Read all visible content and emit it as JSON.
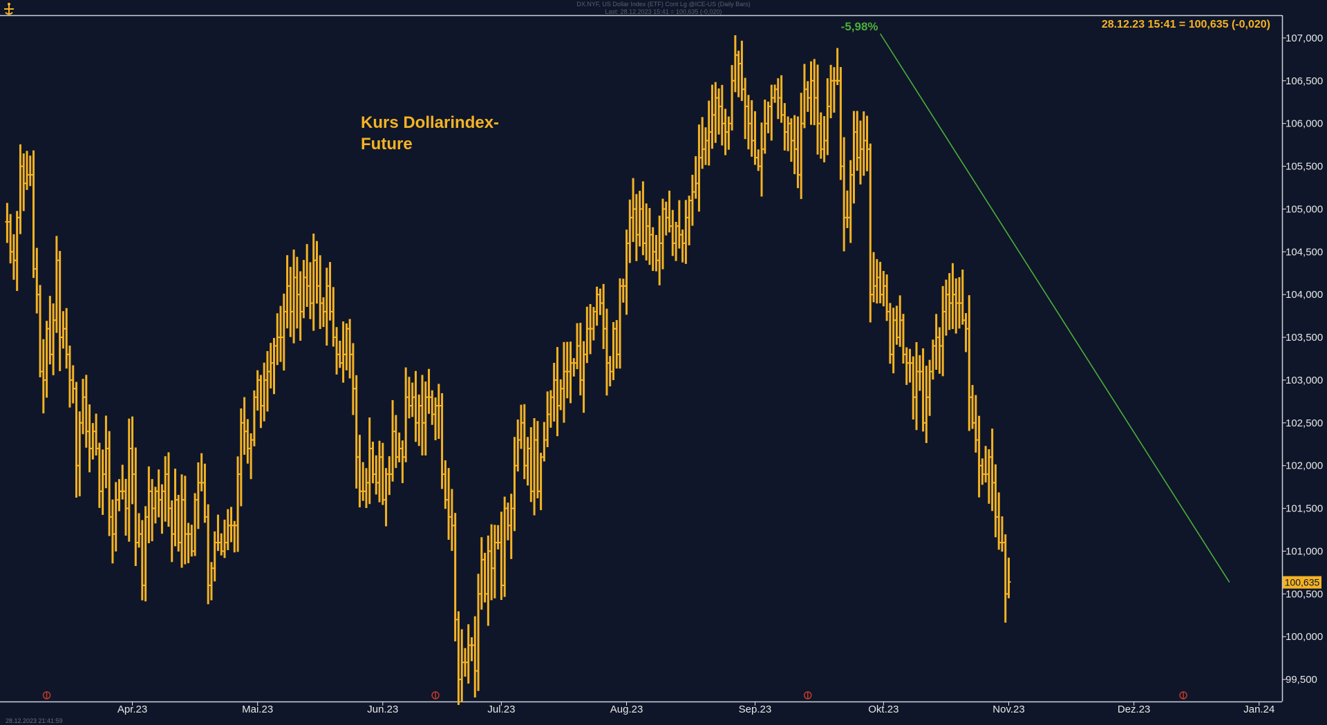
{
  "header": {
    "line1": "DX.NYF, US Dollar Index (ETF) Cont Lg @ICE-US (Daily Bars)",
    "line2": "Last: 28.12.2023 15:41 = 100,635 (-0,020)"
  },
  "annotation": {
    "line1": "Kurs Dollarindex-",
    "line2": "Future"
  },
  "quote_label": "28.12.23 15:41 = 100,635 (-0,020)",
  "trend_label": "-5,98%",
  "last_price_label": "100,635",
  "footer_stamp": "28.12.2023 21:41:59",
  "colors": {
    "background": "#0f1629",
    "bars": "#f5b324",
    "trendline": "#4caf3a",
    "axis": "#e8e8e8"
  },
  "icons": [
    "logo-icon",
    "event-marker-icon"
  ],
  "chart_data": {
    "type": "ohlc",
    "title": "Kurs Dollarindex-Future",
    "xlabel": "",
    "ylabel": "",
    "ylim": [
      99.25,
      107.25
    ],
    "y_ticks": [
      "99,500",
      "100,000",
      "100,500",
      "101,000",
      "101,500",
      "102,000",
      "102,500",
      "103,000",
      "103,500",
      "104,000",
      "104,500",
      "105,000",
      "105,500",
      "106,000",
      "106,500",
      "107,000"
    ],
    "y_tick_values": [
      99.5,
      100,
      100.5,
      101,
      101.5,
      102,
      102.5,
      103,
      103.5,
      104,
      104.5,
      105,
      105.5,
      106,
      106.5,
      107
    ],
    "x_ticks": [
      "Apr.23",
      "Mai.23",
      "Jun.23",
      "Jul.23",
      "Aug.23",
      "Sep.23",
      "Okt.23",
      "Nov.23",
      "Dez.23",
      "Jan.24"
    ],
    "x_tick_bar_index": [
      38,
      76,
      114,
      150,
      188,
      227,
      266,
      304,
      342,
      380
    ],
    "event_marker_bar_index": [
      12,
      130,
      243,
      357
    ],
    "trendline": {
      "from_bar": 265,
      "from_value": 107.05,
      "to_bar": 371,
      "to_value": 100.635,
      "change_label": "-5,98%"
    },
    "last_value": 100.635,
    "close_series": [
      104.85,
      104.5,
      104.4,
      104.9,
      105.5,
      105.3,
      105.4,
      105.4,
      104.3,
      104.0,
      103.1,
      103.0,
      103.6,
      103.3,
      103.7,
      104.4,
      103.5,
      103.6,
      103.3,
      103.0,
      102.9,
      102.0,
      102.5,
      102.8,
      102.4,
      102.2,
      102.4,
      102.2,
      101.7,
      101.9,
      102.2,
      101.4,
      101.2,
      101.6,
      101.7,
      101.7,
      101.5,
      102.2,
      101.9,
      101.1,
      101.2,
      100.6,
      101.4,
      101.7,
      101.5,
      101.7,
      101.6,
      101.7,
      101.9,
      101.5,
      101.2,
      101.6,
      101.1,
      101.6,
      101.2,
      101.2,
      101.0,
      101.6,
      101.8,
      101.8,
      101.4,
      100.6,
      100.8,
      101.1,
      101.1,
      101.0,
      101.1,
      101.3,
      101.3,
      101.3,
      101.9,
      102.5,
      102.4,
      102.2,
      102.3,
      102.8,
      103.0,
      102.7,
      103.0,
      103.1,
      103.2,
      103.4,
      103.5,
      103.5,
      103.8,
      104.1,
      103.8,
      104.2,
      104.0,
      103.8,
      104.2,
      104.1,
      103.9,
      104.4,
      104.1,
      103.9,
      103.8,
      104.1,
      103.8,
      103.5,
      103.3,
      103.2,
      103.3,
      103.6,
      103.3,
      102.9,
      102.1,
      101.7,
      101.7,
      101.8,
      102.2,
      101.9,
      101.8,
      102.1,
      101.6,
      101.9,
      101.9,
      102.4,
      102.1,
      102.2,
      102.1,
      102.8,
      102.7,
      102.8,
      102.5,
      102.7,
      102.5,
      102.8,
      102.8,
      102.6,
      102.7,
      102.7,
      101.9,
      101.6,
      101.4,
      101.3,
      100.2,
      99.5,
      99.7,
      99.7,
      99.9,
      99.9,
      99.6,
      100.5,
      100.9,
      100.5,
      101.0,
      100.8,
      101.1,
      101.1,
      100.6,
      101.5,
      101.3,
      101.5,
      102.0,
      102.3,
      102.5,
      102.0,
      102.2,
      101.7,
      102.3,
      101.7,
      102.1,
      102.3,
      102.6,
      102.8,
      103.0,
      102.7,
      102.9,
      103.1,
      103.1,
      103.2,
      103.2,
      103.4,
      103.0,
      103.3,
      103.6,
      103.6,
      103.8,
      104.0,
      103.9,
      103.6,
      103.2,
      103.1,
      103.6,
      103.3,
      104.1,
      104.1,
      104.6,
      104.9,
      105.0,
      104.7,
      105.0,
      104.6,
      104.8,
      104.7,
      104.5,
      104.4,
      104.6,
      105.0,
      104.9,
      104.8,
      104.6,
      104.8,
      104.7,
      104.6,
      104.9,
      105.1,
      105.2,
      105.3,
      105.6,
      105.7,
      105.8,
      105.9,
      106.1,
      106.3,
      106.2,
      106.0,
      105.9,
      106.0,
      106.5,
      106.8,
      106.7,
      106.4,
      106.2,
      106.0,
      105.8,
      105.6,
      105.5,
      105.7,
      106.0,
      106.2,
      106.3,
      106.4,
      106.3,
      106.1,
      105.9,
      106.0,
      105.8,
      105.7,
      105.4,
      106.0,
      106.4,
      106.3,
      106.5,
      106.3,
      106.0,
      105.7,
      105.8,
      106.2,
      106.5,
      106.5,
      106.5,
      105.5,
      104.9,
      104.9,
      105.4,
      105.9,
      105.6,
      105.7,
      105.8,
      105.7,
      104.0,
      104.1,
      104.2,
      104.0,
      104.1,
      103.8,
      103.3,
      103.7,
      103.5,
      103.7,
      103.3,
      103.2,
      103.2,
      102.8,
      103.1,
      103.1,
      102.5,
      102.8,
      103.1,
      103.4,
      103.5,
      103.4,
      103.8,
      104.0,
      103.9,
      104.0,
      103.9,
      103.9,
      103.7,
      103.6,
      102.8,
      102.5,
      102.3,
      102.0,
      101.9,
      101.9,
      102.1,
      101.8,
      101.4,
      101.1,
      101.1,
      100.5,
      100.64
    ]
  }
}
